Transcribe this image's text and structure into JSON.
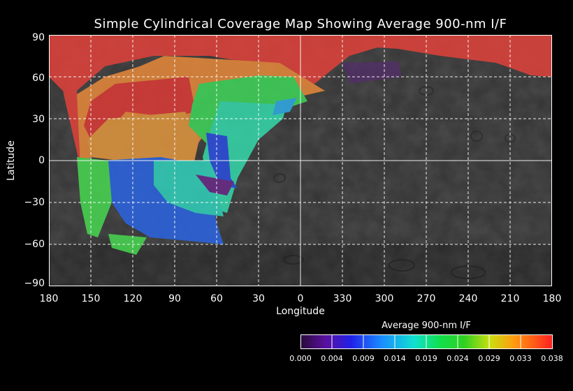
{
  "title": "Simple Cylindrical Coverage Map Showing Average 900-nm I/F",
  "xlabel": "Longitude",
  "ylabel": "Latitude",
  "x_ticks": [
    "180",
    "150",
    "120",
    "90",
    "60",
    "30",
    "0",
    "330",
    "300",
    "270",
    "240",
    "210",
    "180"
  ],
  "y_ticks": [
    "90",
    "60",
    "30",
    "0",
    "−30",
    "−60",
    "−90"
  ],
  "colorbar": {
    "title": "Average 900-nm I/F",
    "ticks": [
      "0.000",
      "0.004",
      "0.009",
      "0.014",
      "0.019",
      "0.024",
      "0.029",
      "0.033",
      "0.038"
    ],
    "range": [
      0.0,
      0.038
    ]
  },
  "map_data": {
    "projection": "simple cylindrical",
    "longitude_range": [
      180,
      -180
    ],
    "latitude_range": [
      -90,
      90
    ],
    "basemap": "grayscale",
    "grid": true
  }
}
